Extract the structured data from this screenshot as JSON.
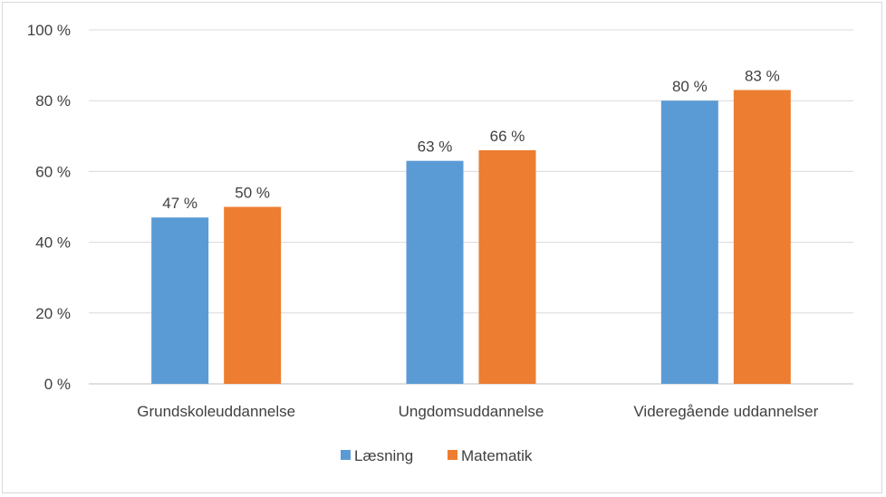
{
  "chart_data": {
    "type": "bar",
    "title": "",
    "xlabel": "",
    "ylabel": "",
    "categories": [
      "Grundskoleuddannelse",
      "Ungdomsuddannelse",
      "Videregående uddannelser"
    ],
    "series": [
      {
        "name": "Læsning",
        "color": "#5B9BD5",
        "values": [
          47,
          63,
          80
        ],
        "labels": [
          "47 %",
          "63 %",
          "80 %"
        ]
      },
      {
        "name": "Matematik",
        "color": "#ED7D31",
        "values": [
          50,
          66,
          83
        ],
        "labels": [
          "50 %",
          "66 %",
          "83 %"
        ]
      }
    ],
    "ylim": [
      0,
      100
    ],
    "yticks": [
      0,
      20,
      40,
      60,
      80,
      100
    ],
    "ytick_labels": [
      "0 %",
      "20 %",
      "40 %",
      "60 %",
      "80 %",
      "100 %"
    ],
    "grid": true,
    "legend_position": "bottom"
  }
}
